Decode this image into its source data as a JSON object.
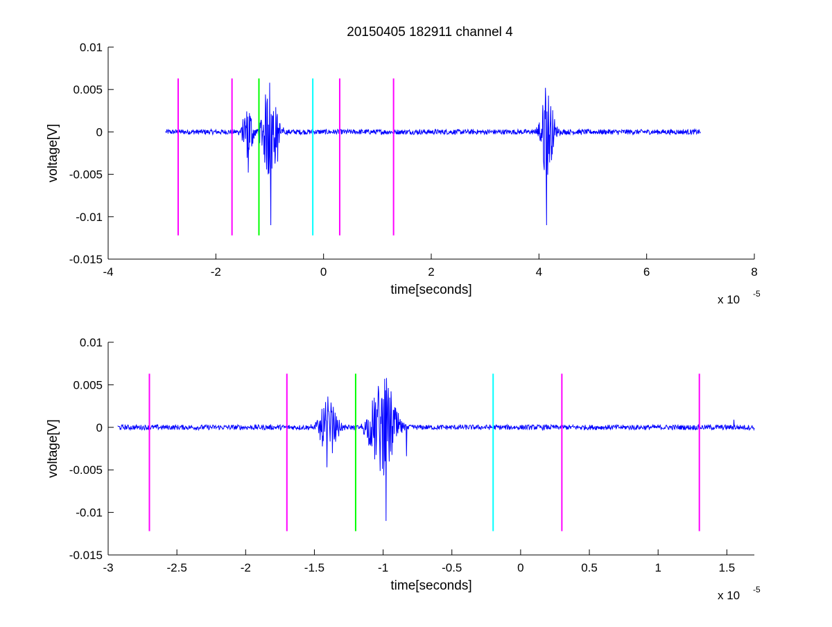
{
  "figure": {
    "title": "20150405 182911 channel 4"
  },
  "chart_data": [
    {
      "type": "line",
      "title": "20150405 182911 channel 4",
      "xlabel": "time[seconds]",
      "ylabel": "voltage[V]",
      "x_multiplier_base": "x 10",
      "x_multiplier_exp": "-5",
      "xlim": [
        -4,
        8
      ],
      "ylim": [
        -0.015,
        0.01
      ],
      "xticks": [
        -4,
        -2,
        0,
        2,
        4,
        6,
        8
      ],
      "xtick_labels": [
        "-4",
        "-2",
        "0",
        "2",
        "4",
        "6",
        "8"
      ],
      "yticks": [
        -0.015,
        -0.01,
        -0.005,
        0,
        0.005,
        0.01
      ],
      "ytick_labels": [
        "-0.015",
        "-0.01",
        "-0.005",
        "0",
        "0.005",
        "0.01"
      ],
      "signal": {
        "color": "#0000ff",
        "x_range": [
          -2.93,
          7.0
        ],
        "baseline": 0,
        "noise_amplitude": 0.0003,
        "bursts": [
          {
            "x": -1.4,
            "width": 0.12,
            "amplitude": 0.0035
          },
          {
            "x": -1.0,
            "width": 0.18,
            "amplitude": 0.006
          },
          {
            "x": 4.15,
            "width": 0.15,
            "amplitude": 0.0055
          }
        ],
        "spikes": [
          {
            "x": -1.4,
            "y": -0.0048
          },
          {
            "x": -0.98,
            "y": -0.011
          },
          {
            "x": -1.0,
            "y": 0.0058
          },
          {
            "x": -0.85,
            "y": -0.0035
          },
          {
            "x": 4.14,
            "y": -0.011
          },
          {
            "x": 4.12,
            "y": 0.0052
          },
          {
            "x": 4.1,
            "y": -0.0045
          }
        ]
      },
      "markers": [
        {
          "x": -2.7,
          "color": "#ff00ff",
          "y_range": [
            -0.0122,
            0.0063
          ]
        },
        {
          "x": -1.7,
          "color": "#ff00ff",
          "y_range": [
            -0.0122,
            0.0063
          ]
        },
        {
          "x": -1.2,
          "color": "#00ff00",
          "y_range": [
            -0.0122,
            0.0063
          ]
        },
        {
          "x": -0.2,
          "color": "#00ffff",
          "y_range": [
            -0.0122,
            0.0063
          ]
        },
        {
          "x": 0.3,
          "color": "#ff00ff",
          "y_range": [
            -0.0122,
            0.0063
          ]
        },
        {
          "x": 1.3,
          "color": "#ff00ff",
          "y_range": [
            -0.0122,
            0.0063
          ]
        }
      ]
    },
    {
      "type": "line",
      "title": "",
      "xlabel": "time[seconds]",
      "ylabel": "voltage[V]",
      "x_multiplier_base": "x 10",
      "x_multiplier_exp": "-5",
      "xlim": [
        -3.0,
        1.7
      ],
      "ylim": [
        -0.015,
        0.01
      ],
      "xticks": [
        -3,
        -2.5,
        -2,
        -1.5,
        -1,
        -0.5,
        0,
        0.5,
        1,
        1.5
      ],
      "xtick_labels": [
        "-3",
        "-2.5",
        "-2",
        "-1.5",
        "-1",
        "-0.5",
        "0",
        "0.5",
        "1",
        "1.5"
      ],
      "yticks": [
        -0.015,
        -0.01,
        -0.005,
        0,
        0.005,
        0.01
      ],
      "ytick_labels": [
        "-0.015",
        "-0.01",
        "-0.005",
        "0",
        "0.005",
        "0.01"
      ],
      "signal": {
        "color": "#0000ff",
        "x_range": [
          -2.93,
          1.7
        ],
        "baseline": 0,
        "noise_amplitude": 0.0003,
        "bursts": [
          {
            "x": -1.4,
            "width": 0.08,
            "amplitude": 0.0035
          },
          {
            "x": -1.0,
            "width": 0.12,
            "amplitude": 0.006
          }
        ],
        "spikes": [
          {
            "x": -1.41,
            "y": -0.0047
          },
          {
            "x": -0.98,
            "y": -0.011
          },
          {
            "x": -0.99,
            "y": 0.0057
          },
          {
            "x": -0.83,
            "y": -0.0034
          },
          {
            "x": 1.55,
            "y": 0.0009
          }
        ]
      },
      "markers": [
        {
          "x": -2.7,
          "color": "#ff00ff",
          "y_range": [
            -0.0122,
            0.0063
          ]
        },
        {
          "x": -1.7,
          "color": "#ff00ff",
          "y_range": [
            -0.0122,
            0.0063
          ]
        },
        {
          "x": -1.2,
          "color": "#00ff00",
          "y_range": [
            -0.0122,
            0.0063
          ]
        },
        {
          "x": -0.2,
          "color": "#00ffff",
          "y_range": [
            -0.0122,
            0.0063
          ]
        },
        {
          "x": 0.3,
          "color": "#ff00ff",
          "y_range": [
            -0.0122,
            0.0063
          ]
        },
        {
          "x": 1.3,
          "color": "#ff00ff",
          "y_range": [
            -0.0122,
            0.0063
          ]
        }
      ]
    }
  ]
}
